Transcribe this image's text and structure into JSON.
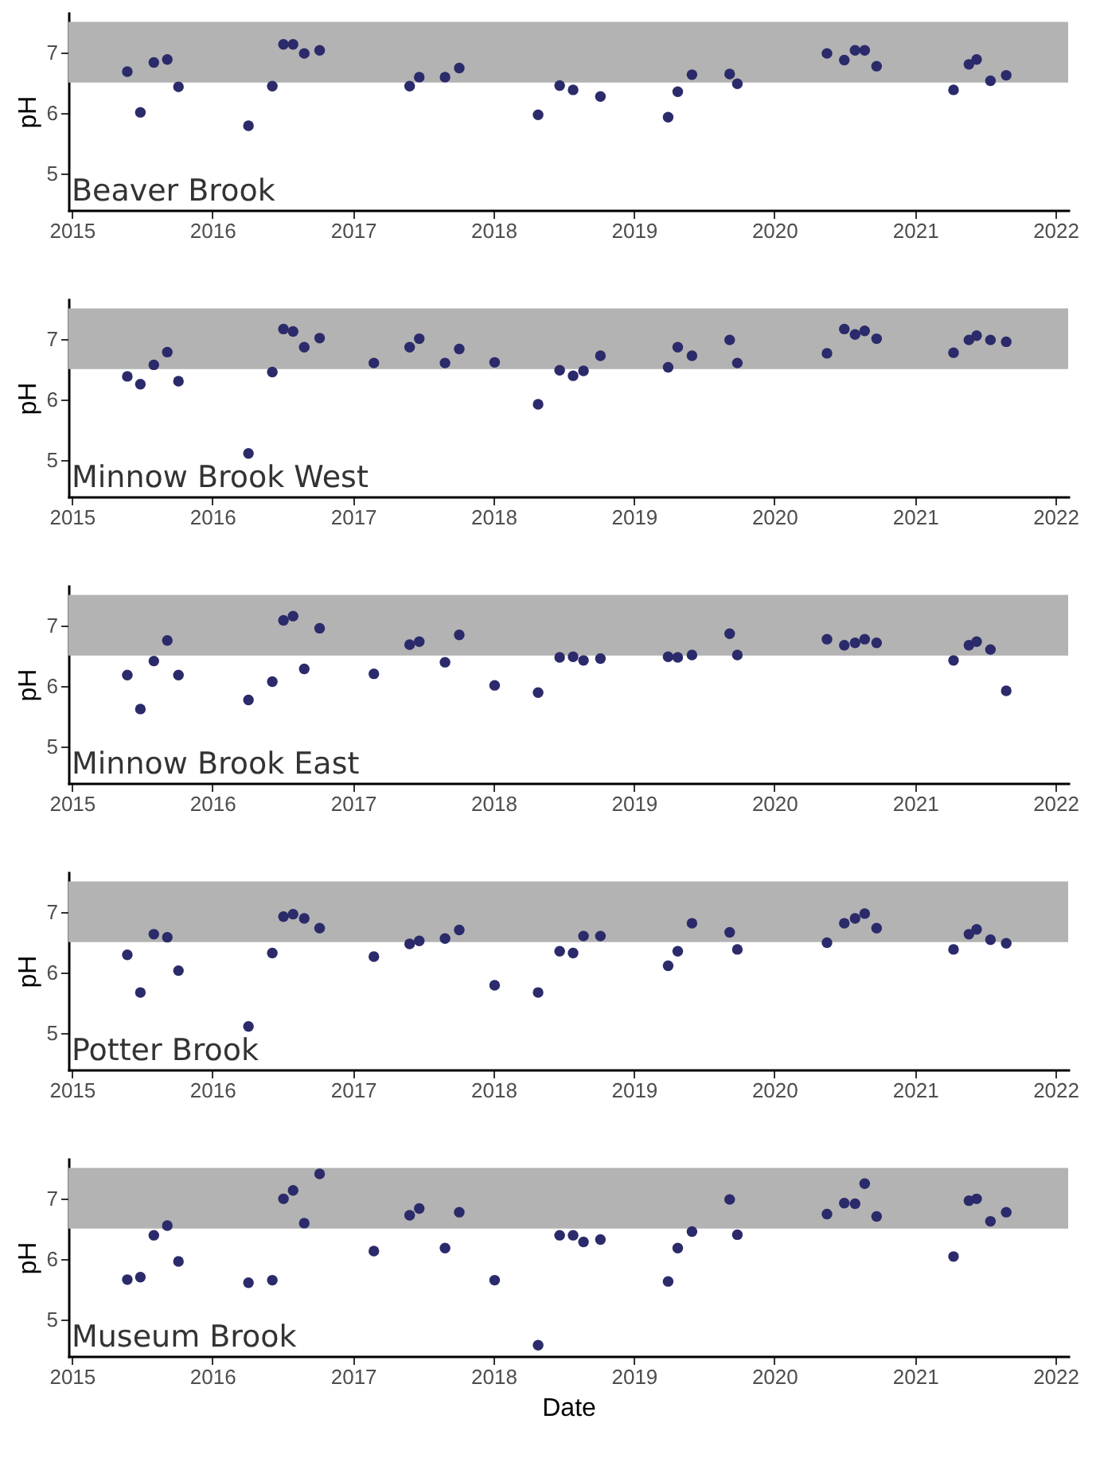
{
  "chart_data": [
    {
      "type": "scatter",
      "ylabel": "pH",
      "annotations": [
        "Beaver Brook"
      ],
      "marker": "circle",
      "grid": false,
      "xlim": [
        "2014-12-23",
        "2022-02-03"
      ],
      "xticks": [
        "2015",
        "2016",
        "2017",
        "2018",
        "2019",
        "2020",
        "2021",
        "2022"
      ],
      "ylim": [
        4.4,
        7.65
      ],
      "yticks": [
        5,
        6,
        7
      ],
      "bands": [
        {
          "axis": "y",
          "from": 6.5,
          "to": 7.5,
          "color": "#b3b3b3"
        }
      ],
      "series": [
        {
          "color": "#2b2a6b",
          "x": [
            "2015-05-25",
            "2015-06-28",
            "2015-08-02",
            "2015-09-06",
            "2015-10-05",
            "2016-04-04",
            "2016-06-05",
            "2016-07-04",
            "2016-07-29",
            "2016-08-27",
            "2016-10-06",
            "2017-05-28",
            "2017-06-22",
            "2017-08-28",
            "2017-10-04",
            "2018-04-27",
            "2018-06-22",
            "2018-07-27",
            "2018-10-06",
            "2019-03-31",
            "2019-04-25",
            "2019-06-01",
            "2019-09-07",
            "2019-09-27",
            "2020-05-17",
            "2020-07-01",
            "2020-07-29",
            "2020-08-23",
            "2020-09-23",
            "2021-04-11",
            "2021-05-21",
            "2021-06-10",
            "2021-07-16",
            "2021-08-26"
          ],
          "values": [
            6.68,
            6.01,
            6.83,
            6.88,
            6.43,
            5.79,
            6.44,
            7.13,
            7.13,
            6.98,
            7.03,
            6.44,
            6.59,
            6.59,
            6.74,
            5.97,
            6.45,
            6.38,
            6.27,
            5.93,
            6.35,
            6.63,
            6.64,
            6.48,
            6.98,
            6.87,
            7.03,
            7.03,
            6.77,
            6.38,
            6.8,
            6.88,
            6.53,
            6.62
          ]
        }
      ]
    },
    {
      "type": "scatter",
      "ylabel": "pH",
      "annotations": [
        "Minnow Brook West"
      ],
      "marker": "circle",
      "grid": false,
      "xlim": [
        "2014-12-23",
        "2022-02-03"
      ],
      "xticks": [
        "2015",
        "2016",
        "2017",
        "2018",
        "2019",
        "2020",
        "2021",
        "2022"
      ],
      "ylim": [
        4.4,
        7.65
      ],
      "yticks": [
        5,
        6,
        7
      ],
      "bands": [
        {
          "axis": "y",
          "from": 6.5,
          "to": 7.5,
          "color": "#b3b3b3"
        }
      ],
      "series": [
        {
          "color": "#2b2a6b",
          "x": [
            "2015-05-25",
            "2015-06-28",
            "2015-08-02",
            "2015-09-06",
            "2015-10-05",
            "2016-04-04",
            "2016-06-05",
            "2016-07-04",
            "2016-07-29",
            "2016-08-27",
            "2016-10-06",
            "2017-02-24",
            "2017-05-28",
            "2017-06-22",
            "2017-08-28",
            "2017-10-04",
            "2018-01-04",
            "2018-04-27",
            "2018-06-22",
            "2018-07-27",
            "2018-08-23",
            "2018-10-06",
            "2019-03-31",
            "2019-04-25",
            "2019-06-01",
            "2019-09-07",
            "2019-09-27",
            "2020-05-17",
            "2020-07-01",
            "2020-07-29",
            "2020-08-23",
            "2020-09-23",
            "2021-04-11",
            "2021-05-21",
            "2021-06-10",
            "2021-07-16",
            "2021-08-26"
          ],
          "values": [
            6.38,
            6.25,
            6.57,
            6.78,
            6.3,
            5.11,
            6.45,
            7.16,
            7.12,
            6.86,
            7.01,
            6.6,
            6.86,
            7.0,
            6.6,
            6.83,
            6.61,
            5.92,
            6.48,
            6.39,
            6.47,
            6.72,
            6.53,
            6.86,
            6.72,
            6.98,
            6.6,
            6.76,
            7.16,
            7.07,
            7.13,
            7.0,
            6.77,
            6.98,
            7.05,
            6.98,
            6.95
          ]
        }
      ]
    },
    {
      "type": "scatter",
      "ylabel": "pH",
      "annotations": [
        "Minnow Brook East"
      ],
      "marker": "circle",
      "grid": false,
      "xlim": [
        "2014-12-23",
        "2022-02-03"
      ],
      "xticks": [
        "2015",
        "2016",
        "2017",
        "2018",
        "2019",
        "2020",
        "2021",
        "2022"
      ],
      "ylim": [
        4.4,
        7.65
      ],
      "yticks": [
        5,
        6,
        7
      ],
      "bands": [
        {
          "axis": "y",
          "from": 6.5,
          "to": 7.5,
          "color": "#b3b3b3"
        }
      ],
      "series": [
        {
          "color": "#2b2a6b",
          "x": [
            "2015-05-25",
            "2015-06-28",
            "2015-08-02",
            "2015-09-06",
            "2015-10-05",
            "2016-04-04",
            "2016-06-05",
            "2016-07-04",
            "2016-07-29",
            "2016-08-27",
            "2016-10-06",
            "2017-02-24",
            "2017-05-28",
            "2017-06-22",
            "2017-08-28",
            "2017-10-04",
            "2018-01-04",
            "2018-04-27",
            "2018-06-22",
            "2018-07-27",
            "2018-08-23",
            "2018-10-06",
            "2019-03-31",
            "2019-04-25",
            "2019-06-01",
            "2019-09-07",
            "2019-09-27",
            "2020-05-17",
            "2020-07-01",
            "2020-07-29",
            "2020-08-23",
            "2020-09-23",
            "2021-04-11",
            "2021-05-21",
            "2021-06-10",
            "2021-07-16",
            "2021-08-26"
          ],
          "values": [
            6.18,
            5.62,
            6.41,
            6.75,
            6.18,
            5.77,
            6.07,
            7.08,
            7.15,
            6.28,
            6.95,
            6.2,
            6.68,
            6.73,
            6.39,
            6.84,
            6.01,
            5.89,
            6.47,
            6.48,
            6.42,
            6.45,
            6.48,
            6.47,
            6.51,
            6.86,
            6.51,
            6.77,
            6.67,
            6.71,
            6.77,
            6.71,
            6.42,
            6.67,
            6.73,
            6.6,
            5.92
          ]
        }
      ]
    },
    {
      "type": "scatter",
      "ylabel": "pH",
      "annotations": [
        "Potter Brook"
      ],
      "marker": "circle",
      "grid": false,
      "xlim": [
        "2014-12-23",
        "2022-02-03"
      ],
      "xticks": [
        "2015",
        "2016",
        "2017",
        "2018",
        "2019",
        "2020",
        "2021",
        "2022"
      ],
      "ylim": [
        4.4,
        7.65
      ],
      "yticks": [
        5,
        6,
        7
      ],
      "bands": [
        {
          "axis": "y",
          "from": 6.5,
          "to": 7.5,
          "color": "#b3b3b3"
        }
      ],
      "series": [
        {
          "color": "#2b2a6b",
          "x": [
            "2015-05-25",
            "2015-06-28",
            "2015-08-02",
            "2015-09-06",
            "2015-10-05",
            "2016-04-04",
            "2016-06-05",
            "2016-07-04",
            "2016-07-29",
            "2016-08-27",
            "2016-10-06",
            "2017-02-24",
            "2017-05-28",
            "2017-06-22",
            "2017-08-28",
            "2017-10-04",
            "2018-01-04",
            "2018-04-27",
            "2018-06-22",
            "2018-07-27",
            "2018-08-23",
            "2018-10-06",
            "2019-03-31",
            "2019-04-25",
            "2019-06-01",
            "2019-09-07",
            "2019-09-27",
            "2020-05-17",
            "2020-07-01",
            "2020-07-29",
            "2020-08-23",
            "2020-09-23",
            "2021-04-11",
            "2021-05-21",
            "2021-06-10",
            "2021-07-16",
            "2021-08-26"
          ],
          "values": [
            6.29,
            5.67,
            6.63,
            6.58,
            6.03,
            5.11,
            6.32,
            6.92,
            6.96,
            6.89,
            6.73,
            6.26,
            6.47,
            6.52,
            6.56,
            6.7,
            5.79,
            5.67,
            6.35,
            6.32,
            6.6,
            6.6,
            6.11,
            6.35,
            6.81,
            6.66,
            6.38,
            6.49,
            6.81,
            6.89,
            6.97,
            6.73,
            6.38,
            6.63,
            6.71,
            6.54,
            6.48
          ]
        }
      ]
    },
    {
      "type": "scatter",
      "xlabel": "Date",
      "ylabel": "pH",
      "annotations": [
        "Museum Brook"
      ],
      "marker": "circle",
      "grid": false,
      "xlim": [
        "2014-12-23",
        "2022-02-03"
      ],
      "xticks": [
        "2015",
        "2016",
        "2017",
        "2018",
        "2019",
        "2020",
        "2021",
        "2022"
      ],
      "ylim": [
        4.4,
        7.65
      ],
      "yticks": [
        5,
        6,
        7
      ],
      "bands": [
        {
          "axis": "y",
          "from": 6.5,
          "to": 7.5,
          "color": "#b3b3b3"
        }
      ],
      "series": [
        {
          "color": "#2b2a6b",
          "x": [
            "2015-05-25",
            "2015-06-28",
            "2015-08-02",
            "2015-09-06",
            "2015-10-05",
            "2016-04-04",
            "2016-06-05",
            "2016-07-04",
            "2016-07-29",
            "2016-08-27",
            "2016-10-06",
            "2017-02-24",
            "2017-05-28",
            "2017-06-22",
            "2017-08-28",
            "2017-10-04",
            "2018-01-04",
            "2018-04-27",
            "2018-06-22",
            "2018-07-27",
            "2018-08-23",
            "2018-10-06",
            "2019-03-31",
            "2019-04-25",
            "2019-06-01",
            "2019-09-07",
            "2019-09-27",
            "2020-05-17",
            "2020-07-01",
            "2020-07-29",
            "2020-08-23",
            "2020-09-23",
            "2021-04-11",
            "2021-05-21",
            "2021-06-10",
            "2021-07-16",
            "2021-08-26"
          ],
          "values": [
            5.66,
            5.7,
            6.39,
            6.55,
            5.96,
            5.61,
            5.65,
            6.99,
            7.13,
            6.59,
            7.4,
            6.13,
            6.72,
            6.83,
            6.18,
            6.77,
            5.65,
            4.58,
            6.39,
            6.39,
            6.28,
            6.32,
            5.63,
            6.18,
            6.45,
            6.98,
            6.4,
            6.74,
            6.92,
            6.91,
            7.24,
            6.7,
            6.04,
            6.96,
            6.99,
            6.62,
            6.77
          ]
        }
      ]
    }
  ]
}
